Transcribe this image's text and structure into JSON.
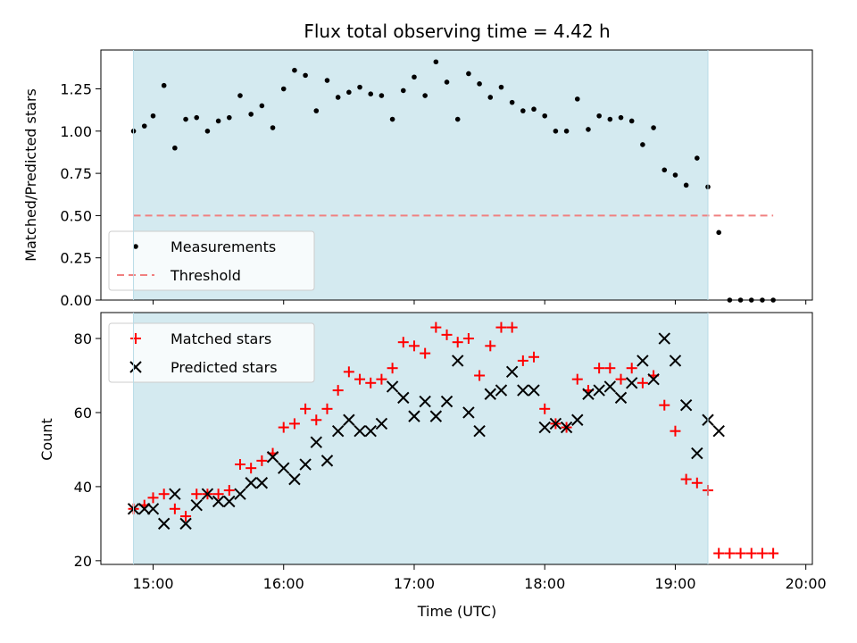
{
  "chart_data": [
    {
      "type": "scatter",
      "title": "Flux total observing time = 4.42 h",
      "xlabel": "",
      "ylabel": "Matched/Predicted stars",
      "xlim": [
        "14:36",
        "20:03"
      ],
      "ylim": [
        0,
        1.48
      ],
      "y_ticks": [
        0.0,
        0.25,
        0.5,
        0.75,
        1.0,
        1.25
      ],
      "y_tick_labels": [
        "0.00",
        "0.25",
        "0.50",
        "0.75",
        "1.00",
        "1.25"
      ],
      "shaded_span": {
        "start": "14:51",
        "end": "19:15",
        "color": "#d4eaf0"
      },
      "legend": {
        "placement": "lower-left"
      },
      "series": [
        {
          "name": "Measurements",
          "marker": "dot",
          "color": "#000000",
          "x": [
            "14:51",
            "14:56",
            "15:00",
            "15:05",
            "15:10",
            "15:15",
            "15:20",
            "15:25",
            "15:30",
            "15:35",
            "15:40",
            "15:45",
            "15:50",
            "15:55",
            "16:00",
            "16:05",
            "16:10",
            "16:15",
            "16:20",
            "16:25",
            "16:30",
            "16:35",
            "16:40",
            "16:45",
            "16:50",
            "16:55",
            "17:00",
            "17:05",
            "17:10",
            "17:15",
            "17:20",
            "17:25",
            "17:30",
            "17:35",
            "17:40",
            "17:45",
            "17:50",
            "17:55",
            "18:00",
            "18:05",
            "18:10",
            "18:15",
            "18:20",
            "18:25",
            "18:30",
            "18:35",
            "18:40",
            "18:45",
            "18:50",
            "18:55",
            "19:00",
            "19:05",
            "19:10",
            "19:15",
            "19:20",
            "19:25",
            "19:30",
            "19:35",
            "19:40",
            "19:45"
          ],
          "values": [
            1.0,
            1.03,
            1.09,
            1.27,
            0.9,
            1.07,
            1.08,
            1.0,
            1.06,
            1.08,
            1.21,
            1.1,
            1.15,
            1.02,
            1.25,
            1.36,
            1.33,
            1.12,
            1.3,
            1.2,
            1.23,
            1.26,
            1.22,
            1.21,
            1.07,
            1.24,
            1.32,
            1.21,
            1.41,
            1.29,
            1.07,
            1.34,
            1.28,
            1.2,
            1.26,
            1.17,
            1.12,
            1.13,
            1.09,
            1.0,
            1.0,
            1.19,
            1.01,
            1.09,
            1.07,
            1.08,
            1.06,
            0.92,
            1.02,
            0.77,
            0.74,
            0.68,
            0.84,
            0.67,
            0.4,
            0.0,
            0.0,
            0.0,
            0.0,
            0.0
          ]
        },
        {
          "name": "Threshold",
          "marker": "dashed-line",
          "color": "#f08080",
          "x": [
            "14:51",
            "19:45"
          ],
          "values": [
            0.5,
            0.5
          ]
        }
      ]
    },
    {
      "type": "scatter",
      "title": "",
      "xlabel": "Time (UTC)",
      "ylabel": "Count",
      "xlim": [
        "14:36",
        "20:03"
      ],
      "ylim": [
        19,
        87
      ],
      "x_ticks": [
        "15:00",
        "16:00",
        "17:00",
        "18:00",
        "19:00",
        "20:00"
      ],
      "y_ticks": [
        20,
        40,
        60,
        80
      ],
      "y_tick_labels": [
        "20",
        "40",
        "60",
        "80"
      ],
      "shaded_span": {
        "start": "14:51",
        "end": "19:15",
        "color": "#d4eaf0"
      },
      "legend": {
        "placement": "upper-left"
      },
      "series": [
        {
          "name": "Matched stars",
          "marker": "plus",
          "color": "#ff0000",
          "x": [
            "14:51",
            "14:56",
            "15:00",
            "15:05",
            "15:10",
            "15:15",
            "15:20",
            "15:25",
            "15:30",
            "15:35",
            "15:40",
            "15:45",
            "15:50",
            "15:55",
            "16:00",
            "16:05",
            "16:10",
            "16:15",
            "16:20",
            "16:25",
            "16:30",
            "16:35",
            "16:40",
            "16:45",
            "16:50",
            "16:55",
            "17:00",
            "17:05",
            "17:10",
            "17:15",
            "17:20",
            "17:25",
            "17:30",
            "17:35",
            "17:40",
            "17:45",
            "17:50",
            "17:55",
            "18:00",
            "18:05",
            "18:10",
            "18:15",
            "18:20",
            "18:25",
            "18:30",
            "18:35",
            "18:40",
            "18:45",
            "18:50",
            "18:55",
            "19:00",
            "19:05",
            "19:10",
            "19:15",
            "19:20",
            "19:25",
            "19:30",
            "19:35",
            "19:40",
            "19:45"
          ],
          "values": [
            34,
            35,
            37,
            38,
            34,
            32,
            38,
            38,
            38,
            39,
            46,
            45,
            47,
            49,
            56,
            57,
            61,
            58,
            61,
            66,
            71,
            69,
            68,
            69,
            72,
            79,
            78,
            76,
            83,
            81,
            79,
            80,
            70,
            78,
            83,
            83,
            74,
            75,
            61,
            57,
            56,
            69,
            66,
            72,
            72,
            69,
            72,
            68,
            70,
            62,
            55,
            42,
            41,
            39,
            22,
            22,
            22,
            22,
            22,
            22
          ]
        },
        {
          "name": "Predicted stars",
          "marker": "x",
          "color": "#000000",
          "x": [
            "14:51",
            "14:56",
            "15:00",
            "15:05",
            "15:10",
            "15:15",
            "15:20",
            "15:25",
            "15:30",
            "15:35",
            "15:40",
            "15:45",
            "15:50",
            "15:55",
            "16:00",
            "16:05",
            "16:10",
            "16:15",
            "16:20",
            "16:25",
            "16:30",
            "16:35",
            "16:40",
            "16:45",
            "16:50",
            "16:55",
            "17:00",
            "17:05",
            "17:10",
            "17:15",
            "17:20",
            "17:25",
            "17:30",
            "17:35",
            "17:40",
            "17:45",
            "17:50",
            "17:55",
            "18:00",
            "18:05",
            "18:10",
            "18:15",
            "18:20",
            "18:25",
            "18:30",
            "18:35",
            "18:40",
            "18:45",
            "18:50",
            "18:55",
            "19:00",
            "19:05",
            "19:10",
            "19:15",
            "19:20"
          ],
          "values": [
            34,
            34,
            34,
            30,
            38,
            30,
            35,
            38,
            36,
            36,
            38,
            41,
            41,
            48,
            45,
            42,
            46,
            52,
            47,
            55,
            58,
            55,
            55,
            57,
            67,
            64,
            59,
            63,
            59,
            63,
            74,
            60,
            55,
            65,
            66,
            71,
            66,
            66,
            56,
            57,
            56,
            58,
            65,
            66,
            67,
            64,
            68,
            74,
            69,
            80,
            74,
            62,
            49,
            58,
            55
          ]
        }
      ]
    }
  ]
}
